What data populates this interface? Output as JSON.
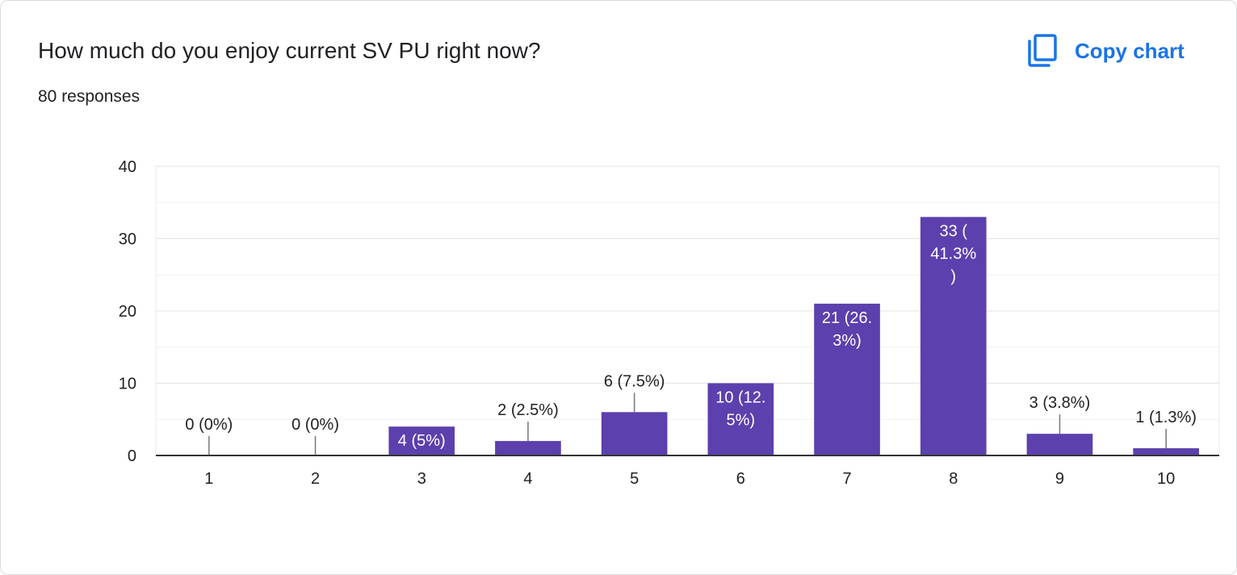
{
  "card": {
    "title": "How much do you enjoy current SV PU right now?",
    "subtitle": "80 responses",
    "copy_label": "Copy chart",
    "copy_icon": "copy-icon"
  },
  "colors": {
    "bar": "#5c40ad",
    "accent": "#1a73e8",
    "grid": "#ebebeb",
    "axis": "#333333",
    "text": "#202124"
  },
  "chart_data": {
    "type": "bar",
    "categories": [
      "1",
      "2",
      "3",
      "4",
      "5",
      "6",
      "7",
      "8",
      "9",
      "10"
    ],
    "values": [
      0,
      0,
      4,
      2,
      6,
      10,
      21,
      33,
      3,
      1
    ],
    "data_labels": [
      [
        "0 (0%)"
      ],
      [
        "0 (0%)"
      ],
      [
        "4 (5%)"
      ],
      [
        "2 (2.5%)"
      ],
      [
        "6 (7.5%)"
      ],
      [
        "10 (12.",
        "5%)"
      ],
      [
        "21 (26.",
        "3%)"
      ],
      [
        "33 (",
        "41.3%",
        ")"
      ],
      [
        "3 (3.8%)"
      ],
      [
        "1 (1.3%)"
      ]
    ],
    "label_inside": [
      false,
      false,
      true,
      false,
      false,
      true,
      true,
      true,
      false,
      false
    ],
    "ylim": [
      0,
      40
    ],
    "yticks": [
      0,
      10,
      20,
      30,
      40
    ],
    "minor_grid": true,
    "grid": true,
    "title": "",
    "xlabel": "",
    "ylabel": ""
  }
}
